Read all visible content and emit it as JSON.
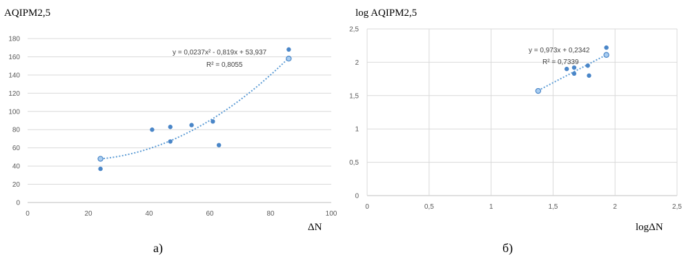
{
  "colors": {
    "point": "#4a86c8",
    "point_highlight_fill": "#a9cdf0",
    "trend": "#5b9bd5",
    "grid": "#d9d9d9"
  },
  "chart_data": [
    {
      "type": "scatter",
      "title": "AQIPM2,5",
      "xlabel": "ΔN",
      "ylabel": "",
      "caption": "а)",
      "xlim": [
        0,
        100
      ],
      "ylim": [
        0,
        180
      ],
      "xticks": [
        0,
        20,
        40,
        60,
        80,
        100
      ],
      "yticks": [
        0,
        20,
        40,
        60,
        80,
        100,
        120,
        140,
        160,
        180
      ],
      "tick_labels_x": [
        "0",
        "20",
        "40",
        "60",
        "80",
        "100"
      ],
      "tick_labels_y": [
        "0",
        "20",
        "40",
        "60",
        "80",
        "100",
        "120",
        "140",
        "160",
        "180"
      ],
      "grid": "horizontal",
      "series": [
        {
          "points": [
            {
              "x": 24,
              "y": 37
            },
            {
              "x": 24,
              "y": 48
            },
            {
              "x": 41,
              "y": 80
            },
            {
              "x": 47,
              "y": 83
            },
            {
              "x": 47,
              "y": 67
            },
            {
              "x": 54,
              "y": 85
            },
            {
              "x": 61,
              "y": 89
            },
            {
              "x": 63,
              "y": 63
            },
            {
              "x": 86,
              "y": 168
            },
            {
              "x": 86,
              "y": 158
            }
          ],
          "highlighted_points": [
            1,
            9
          ]
        }
      ],
      "trendline": {
        "kind": "polynomial",
        "coefficients": [
          0.0237,
          -0.819,
          53.937
        ],
        "x_range": [
          24,
          86
        ],
        "equation": "y = 0,0237x² - 0,819x + 53,937",
        "r2": "R² = 0,8055"
      }
    },
    {
      "type": "scatter",
      "title": "log AQIPM2,5",
      "xlabel": "logΔN",
      "ylabel": "",
      "caption": "б)",
      "xlim": [
        0,
        2.5
      ],
      "ylim": [
        0,
        2.5
      ],
      "xticks": [
        0,
        0.5,
        1,
        1.5,
        2,
        2.5
      ],
      "yticks": [
        0,
        0.5,
        1,
        1.5,
        2,
        2.5
      ],
      "tick_labels_x": [
        "0",
        "0,5",
        "1",
        "1,5",
        "2",
        "2,5"
      ],
      "tick_labels_y": [
        "0",
        "0,5",
        "1",
        "1,5",
        "2",
        "2,5"
      ],
      "grid": "both",
      "series": [
        {
          "points": [
            {
              "x": 1.38,
              "y": 1.57
            },
            {
              "x": 1.61,
              "y": 1.9
            },
            {
              "x": 1.67,
              "y": 1.92
            },
            {
              "x": 1.67,
              "y": 1.83
            },
            {
              "x": 1.78,
              "y": 1.95
            },
            {
              "x": 1.79,
              "y": 1.8
            },
            {
              "x": 1.93,
              "y": 2.22
            },
            {
              "x": 1.93,
              "y": 2.11
            }
          ],
          "highlighted_points": [
            0,
            7
          ]
        }
      ],
      "trendline": {
        "kind": "linear",
        "coefficients": [
          0.973,
          0.2342
        ],
        "x_range": [
          1.38,
          1.93
        ],
        "equation": "y = 0,973x + 0,2342",
        "r2": "R² = 0,7339"
      }
    }
  ]
}
